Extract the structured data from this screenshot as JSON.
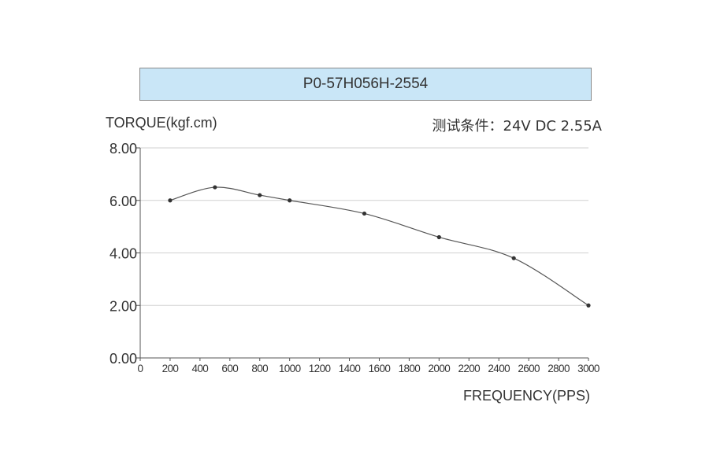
{
  "chart_data": {
    "type": "line",
    "title": "P0-57H056H-2554",
    "ylabel": "TORQUE(kgf.cm)",
    "xlabel": "FREQUENCY(PPS)",
    "condition": "测试条件：24V DC  2.55A",
    "xlim": [
      0,
      3000
    ],
    "ylim": [
      0,
      8
    ],
    "xticks": [
      0,
      200,
      400,
      600,
      800,
      1000,
      1200,
      1400,
      1600,
      1800,
      2000,
      2200,
      2400,
      2600,
      2800,
      3000
    ],
    "xtick_labels": [
      "0",
      "200",
      "400",
      "600",
      "800",
      "1000",
      "1200",
      "1400",
      "1600",
      "1800",
      "2000",
      "2200",
      "2400",
      "2600",
      "2800",
      "3000"
    ],
    "yticks": [
      0,
      2,
      4,
      6,
      8
    ],
    "ytick_labels": [
      "0.00",
      "2.00",
      "4.00",
      "6.00",
      "8.00"
    ],
    "grid": "horizontal",
    "series": [
      {
        "x": [
          200,
          500,
          800,
          1000,
          1500,
          2000,
          2500,
          3000
        ],
        "y": [
          6.0,
          6.5,
          6.2,
          6.0,
          5.5,
          4.6,
          3.8,
          2.0
        ]
      }
    ],
    "colors": {
      "line": "#555555",
      "marker": "#333333",
      "grid": "#d0d0d0",
      "title_box": "#c9e6f7"
    }
  }
}
